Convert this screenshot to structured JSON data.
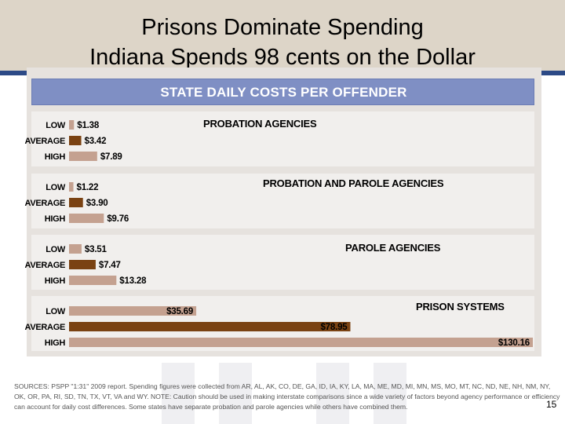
{
  "slide": {
    "title_line1": "Prisons Dominate Spending",
    "title_line2": "Indiana Spends 98 cents on the Dollar",
    "page_number": "15",
    "sources": "SOURCES: PSPP \"1:31\" 2009 report. Spending figures were collected from AR, AL, AK, CO, DE, GA, ID, IA, KY, LA, MA, ME, MD, MI, MN, MS, MO, MT, NC, ND, NE, NH, NM, NY, OK, OR, PA, RI, SD, TN, TX, VT, VA and WY. NOTE: Caution should be used in making interstate comparisons since a wide variety of factors beyond agency performance or efficiency can account for daily cost differences. Some states have separate probation and parole agencies while others have combined them."
  },
  "colors": {
    "header": "#7f8fc4",
    "low_high_bar": "#c4a190",
    "average_bar": "#7a4212",
    "label_text": "#000000"
  },
  "chart_data": {
    "type": "bar",
    "orientation": "horizontal",
    "title": "STATE DAILY COSTS PER OFFENDER",
    "xlim": [
      0,
      130.16
    ],
    "grid": false,
    "legend": "none",
    "groups": [
      {
        "name": "PROBATION AGENCIES",
        "bars": [
          {
            "label": "LOW",
            "value": 1.38,
            "text": "$1.38"
          },
          {
            "label": "AVERAGE",
            "value": 3.42,
            "text": "$3.42"
          },
          {
            "label": "HIGH",
            "value": 7.89,
            "text": "$7.89"
          }
        ]
      },
      {
        "name": "PROBATION AND PAROLE AGENCIES",
        "bars": [
          {
            "label": "LOW",
            "value": 1.22,
            "text": "$1.22"
          },
          {
            "label": "AVERAGE",
            "value": 3.9,
            "text": "$3.90"
          },
          {
            "label": "HIGH",
            "value": 9.76,
            "text": "$9.76"
          }
        ]
      },
      {
        "name": "PAROLE AGENCIES",
        "bars": [
          {
            "label": "LOW",
            "value": 3.51,
            "text": "$3.51"
          },
          {
            "label": "AVERAGE",
            "value": 7.47,
            "text": "$7.47"
          },
          {
            "label": "HIGH",
            "value": 13.28,
            "text": "$13.28"
          }
        ]
      },
      {
        "name": "PRISON SYSTEMS",
        "bars": [
          {
            "label": "LOW",
            "value": 35.69,
            "text": "$35.69"
          },
          {
            "label": "AVERAGE",
            "value": 78.95,
            "text": "$78.95"
          },
          {
            "label": "HIGH",
            "value": 130.16,
            "text": "$130.16"
          }
        ]
      }
    ]
  }
}
